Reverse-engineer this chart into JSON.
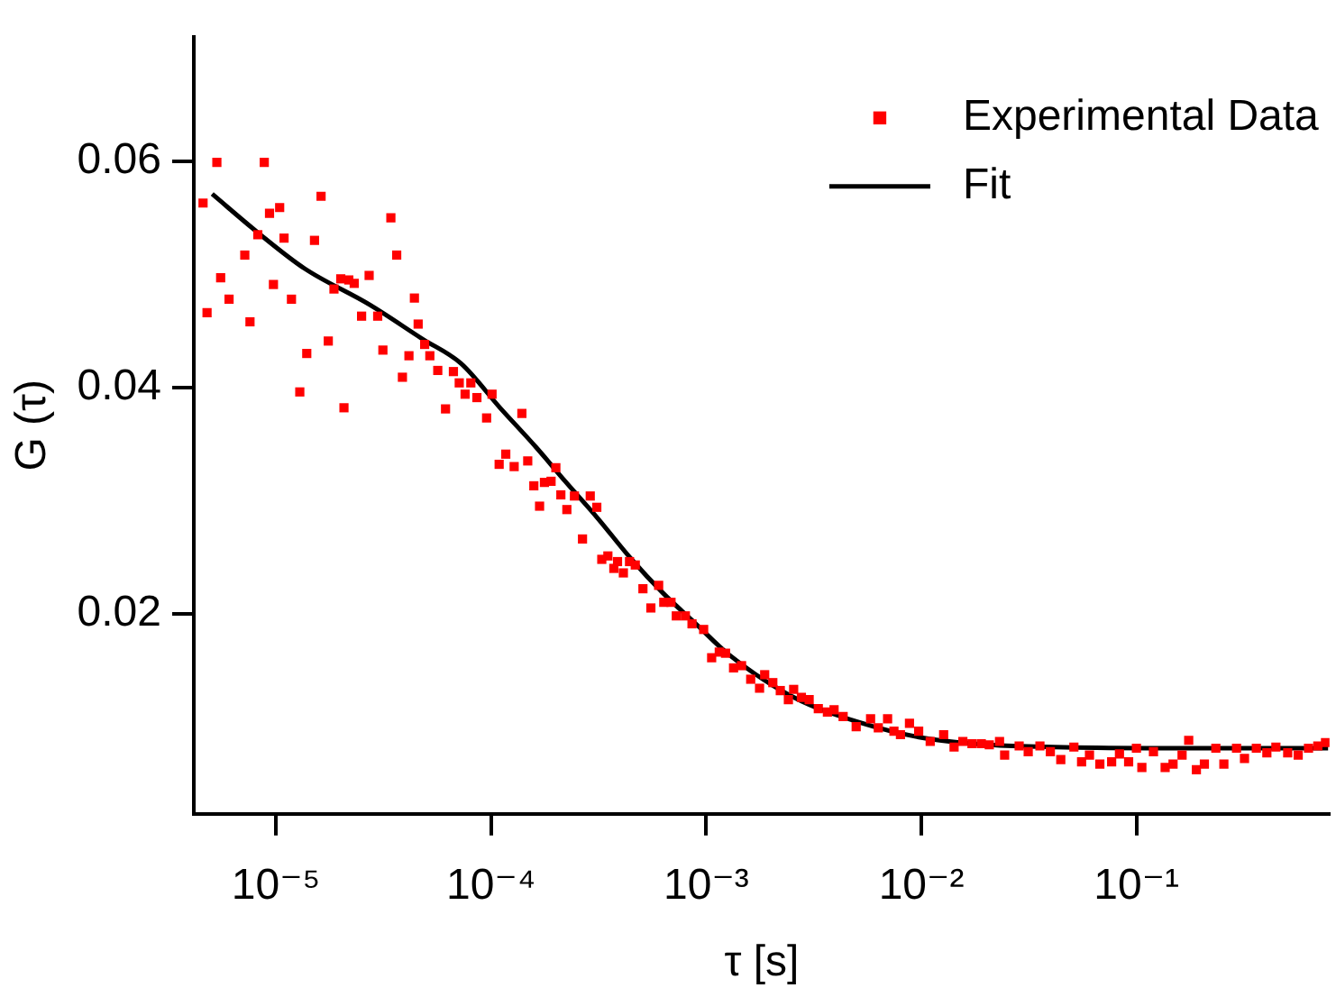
{
  "chart_data": {
    "type": "scatter",
    "xlabel": "τ [s]",
    "ylabel": "G (τ)",
    "log": "x",
    "legend": "top right",
    "xlim": [
      4.15e-06,
      0.79
    ],
    "ylim": [
      0.0023,
      0.071
    ],
    "xticks": [
      {
        "value": 1e-05,
        "label": "10⁻⁵"
      },
      {
        "value": 0.0001,
        "label": "10⁻⁴"
      },
      {
        "value": 0.001,
        "label": "10⁻³"
      },
      {
        "value": 0.01,
        "label": "10⁻²"
      },
      {
        "value": 0.1,
        "label": "10⁻¹"
      }
    ],
    "yticks": [
      0.02,
      0.04,
      0.06
    ],
    "series": [
      {
        "name": "Experimental Data",
        "marker": "square",
        "color": "#ff0000",
        "x": [
          4.58e-06,
          4.78e-06,
          5.31e-06,
          5.53e-06,
          6.05e-06,
          7.16e-06,
          7.57e-06,
          8.23e-06,
          8.82e-06,
          9.33e-06,
          9.73e-06,
          1.04e-05,
          1.09e-05,
          1.18e-05,
          1.29e-05,
          1.39e-05,
          1.51e-05,
          1.62e-05,
          1.75e-05,
          1.86e-05,
          2e-05,
          2.07e-05,
          2.18e-05,
          2.31e-05,
          2.5e-05,
          2.71e-05,
          2.97e-05,
          3.14e-05,
          3.42e-05,
          3.64e-05,
          3.87e-05,
          4.15e-05,
          4.4e-05,
          4.58e-05,
          4.91e-05,
          5.19e-05,
          5.65e-05,
          6.14e-05,
          6.68e-05,
          7.11e-05,
          7.57e-05,
          8.05e-05,
          8.59e-05,
          9.53e-05,
          0.000101,
          0.000109,
          0.000117,
          0.000128,
          0.000139,
          0.000148,
          0.000158,
          0.000168,
          0.000177,
          0.00019,
          0.0002,
          0.000211,
          0.000225,
          0.000244,
          0.000266,
          0.000289,
          0.00031,
          0.000327,
          0.000349,
          0.000372,
          0.000387,
          0.000412,
          0.00044,
          0.000468,
          0.000508,
          0.000553,
          0.000601,
          0.000635,
          0.000686,
          0.000726,
          0.0008,
          0.000859,
          0.000973,
          0.00106,
          0.00115,
          0.00123,
          0.00134,
          0.00146,
          0.00161,
          0.00177,
          0.00187,
          0.00204,
          0.00221,
          0.00241,
          0.00255,
          0.00277,
          0.00301,
          0.00332,
          0.00366,
          0.00393,
          0.00433,
          0.00498,
          0.00581,
          0.00631,
          0.00697,
          0.00746,
          0.008,
          0.00881,
          0.00972,
          0.011,
          0.0127,
          0.0142,
          0.0156,
          0.0172,
          0.019,
          0.0207,
          0.0231,
          0.0244,
          0.0285,
          0.0314,
          0.0356,
          0.0398,
          0.0445,
          0.0512,
          0.0556,
          0.0605,
          0.0676,
          0.0767,
          0.0834,
          0.092,
          0.1,
          0.106,
          0.12,
          0.136,
          0.148,
          0.163,
          0.175,
          0.19,
          0.207,
          0.234,
          0.255,
          0.292,
          0.318,
          0.361,
          0.404,
          0.445,
          0.505,
          0.565,
          0.631,
          0.697,
          0.757
        ],
        "values": [
          0.0563,
          0.0466,
          0.0599,
          0.0497,
          0.0478,
          0.0517,
          0.0458,
          0.0535,
          0.0599,
          0.0554,
          0.0491,
          0.0559,
          0.0532,
          0.0478,
          0.0396,
          0.043,
          0.053,
          0.0569,
          0.0441,
          0.0487,
          0.0496,
          0.0382,
          0.0495,
          0.0492,
          0.0463,
          0.0499,
          0.0463,
          0.0433,
          0.055,
          0.0517,
          0.0409,
          0.0428,
          0.0479,
          0.0456,
          0.0438,
          0.0428,
          0.0415,
          0.0381,
          0.0414,
          0.0404,
          0.0394,
          0.0404,
          0.0391,
          0.0373,
          0.0394,
          0.0332,
          0.0341,
          0.033,
          0.0377,
          0.0335,
          0.0313,
          0.0295,
          0.0316,
          0.0317,
          0.0329,
          0.0305,
          0.0292,
          0.0304,
          0.0266,
          0.0304,
          0.0294,
          0.0248,
          0.0251,
          0.024,
          0.0246,
          0.0236,
          0.0246,
          0.0243,
          0.0222,
          0.0205,
          0.0225,
          0.021,
          0.021,
          0.0198,
          0.0198,
          0.0191,
          0.0186,
          0.0161,
          0.0166,
          0.0165,
          0.0152,
          0.0154,
          0.0142,
          0.0134,
          0.0146,
          0.0139,
          0.0132,
          0.0124,
          0.0133,
          0.0126,
          0.0124,
          0.0116,
          0.0113,
          0.0115,
          0.0109,
          0.01,
          0.0107,
          0.0099,
          0.0107,
          0.0096,
          0.0093,
          0.0103,
          0.0096,
          0.0087,
          0.0093,
          0.0082,
          0.0087,
          0.0085,
          0.0085,
          0.0084,
          0.0087,
          0.0075,
          0.0083,
          0.0078,
          0.0083,
          0.0078,
          0.0071,
          0.0082,
          0.0069,
          0.0075,
          0.0067,
          0.0069,
          0.0076,
          0.0069,
          0.0081,
          0.0064,
          0.0078,
          0.0064,
          0.0067,
          0.0075,
          0.0088,
          0.0062,
          0.0067,
          0.0081,
          0.0067,
          0.0081,
          0.0072,
          0.0081,
          0.0077,
          0.0082,
          0.0077,
          0.0075,
          0.0081,
          0.0083,
          0.0086
        ]
      },
      {
        "name": "Fit",
        "type": "line",
        "color": "#000000",
        "x": [
          5.05e-06,
          8.34e-06,
          1.36e-05,
          2.73e-05,
          4.78e-05,
          7.26e-05,
          0.00011,
          0.000162,
          0.000221,
          0.000314,
          0.000445,
          0.000631,
          0.000895,
          0.00127,
          0.00255,
          0.00512,
          0.0103,
          0.0207,
          0.0415,
          0.168,
          0.778
        ],
        "values": [
          0.0571,
          0.0536,
          0.0505,
          0.0473,
          0.0443,
          0.0421,
          0.0382,
          0.0347,
          0.0317,
          0.0284,
          0.0249,
          0.0218,
          0.0191,
          0.0164,
          0.0126,
          0.0104,
          0.009,
          0.0084,
          0.0082,
          0.0081,
          0.0081
        ]
      }
    ]
  }
}
